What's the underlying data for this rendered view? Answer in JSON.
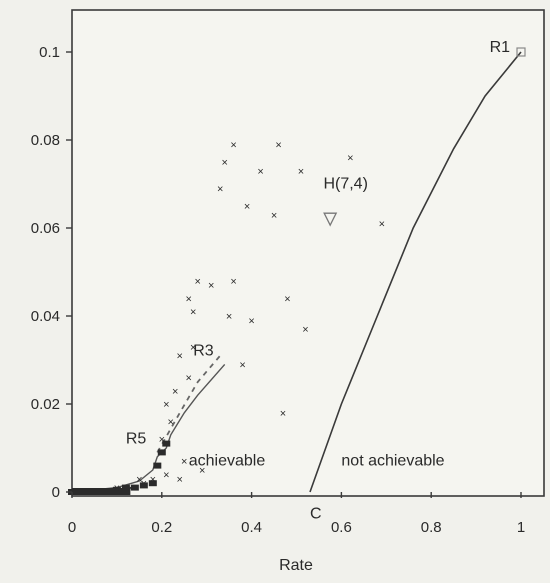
{
  "chart_data": {
    "type": "scatter",
    "title": "",
    "xlabel": "Rate",
    "ylabel": "",
    "xlim": [
      0,
      1
    ],
    "ylim": [
      0,
      0.11
    ],
    "x_ticks": [
      "0",
      "0.2",
      "0.4",
      "0.6",
      "0.8",
      "1"
    ],
    "x_tick_values": [
      0,
      0.2,
      0.4,
      0.6,
      0.8,
      1
    ],
    "y_ticks": [
      "0",
      "0.02",
      "0.04",
      "0.06",
      "0.08",
      "0.1"
    ],
    "y_tick_values": [
      0,
      0.02,
      0.04,
      0.06,
      0.08,
      0.1
    ],
    "grid": false,
    "colors": {
      "background": "#f1f1ec",
      "plot": "#f5f5f0",
      "ink": "#3a3a3a",
      "marker": "#9a9a9a"
    },
    "boundary_curve": [
      [
        0.53,
        0
      ],
      [
        0.6,
        0.02
      ],
      [
        0.68,
        0.04
      ],
      [
        0.76,
        0.06
      ],
      [
        0.85,
        0.078
      ],
      [
        0.92,
        0.09
      ],
      [
        1.0,
        0.1
      ]
    ],
    "scatter_points": [
      [
        0.36,
        0.079
      ],
      [
        0.46,
        0.079
      ],
      [
        0.34,
        0.075
      ],
      [
        0.42,
        0.073
      ],
      [
        0.51,
        0.073
      ],
      [
        0.33,
        0.069
      ],
      [
        0.39,
        0.065
      ],
      [
        0.45,
        0.063
      ],
      [
        0.69,
        0.061
      ],
      [
        0.62,
        0.076
      ],
      [
        0.28,
        0.048
      ],
      [
        0.31,
        0.047
      ],
      [
        0.36,
        0.048
      ],
      [
        0.26,
        0.044
      ],
      [
        0.48,
        0.044
      ],
      [
        0.27,
        0.041
      ],
      [
        0.35,
        0.04
      ],
      [
        0.4,
        0.039
      ],
      [
        0.52,
        0.037
      ],
      [
        0.27,
        0.033
      ],
      [
        0.24,
        0.031
      ],
      [
        0.38,
        0.029
      ],
      [
        0.26,
        0.026
      ],
      [
        0.23,
        0.023
      ],
      [
        0.47,
        0.018
      ],
      [
        0.21,
        0.02
      ],
      [
        0.22,
        0.016
      ],
      [
        0.2,
        0.012
      ],
      [
        0.25,
        0.007
      ],
      [
        0.29,
        0.005
      ],
      [
        0.21,
        0.004
      ],
      [
        0.24,
        0.003
      ],
      [
        0.16,
        0.002
      ],
      [
        0.18,
        0.003
      ],
      [
        0.13,
        0.001
      ],
      [
        0.1,
        0.001
      ],
      [
        0.15,
        0.003
      ]
    ],
    "dense_cluster": [
      [
        0.0,
        0.0
      ],
      [
        0.02,
        0.0
      ],
      [
        0.04,
        0.0
      ],
      [
        0.06,
        0.0
      ],
      [
        0.08,
        0.0
      ],
      [
        0.1,
        0.0005
      ],
      [
        0.12,
        0.001
      ],
      [
        0.14,
        0.001
      ],
      [
        0.16,
        0.0015
      ],
      [
        0.18,
        0.002
      ],
      [
        0.19,
        0.006
      ],
      [
        0.2,
        0.009
      ],
      [
        0.21,
        0.011
      ]
    ],
    "staircase_curve": [
      [
        0.0,
        0.0
      ],
      [
        0.05,
        0.0005
      ],
      [
        0.1,
        0.001
      ],
      [
        0.15,
        0.0025
      ],
      [
        0.18,
        0.005
      ],
      [
        0.19,
        0.008
      ],
      [
        0.21,
        0.01
      ],
      [
        0.22,
        0.013
      ],
      [
        0.25,
        0.018
      ],
      [
        0.28,
        0.022
      ],
      [
        0.34,
        0.029
      ]
    ],
    "dashed_curve": [
      [
        0.19,
        0.009
      ],
      [
        0.24,
        0.018
      ],
      [
        0.28,
        0.025
      ],
      [
        0.33,
        0.031
      ]
    ],
    "marker_point": {
      "x": 0.575,
      "y": 0.062
    },
    "end_point": {
      "x": 1.0,
      "y": 0.1
    },
    "annotations": [
      {
        "text": "R1",
        "x": 0.93,
        "y": 0.1
      },
      {
        "text": "H(7,4)",
        "x": 0.56,
        "y": 0.069
      },
      {
        "text": "R3",
        "x": 0.27,
        "y": 0.031
      },
      {
        "text": "R5",
        "x": 0.12,
        "y": 0.011
      },
      {
        "text": "achievable",
        "x": 0.26,
        "y": 0.006
      },
      {
        "text": "not achievable",
        "x": 0.6,
        "y": 0.006
      },
      {
        "text": "C",
        "x": 0.53,
        "y": -0.006
      }
    ]
  }
}
